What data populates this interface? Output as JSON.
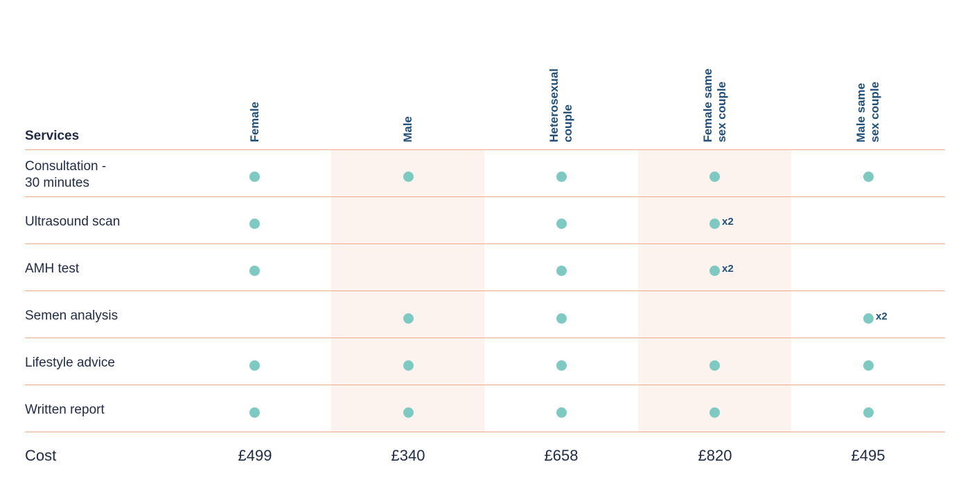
{
  "header": {
    "services_label": "Services",
    "columns": [
      {
        "label": "Female"
      },
      {
        "label": "Male"
      },
      {
        "label": "Heterosexual\ncouple"
      },
      {
        "label": "Female same\nsex couple"
      },
      {
        "label": "Male same\nsex couple"
      }
    ]
  },
  "rows": [
    {
      "label": "Consultation -\n30 minutes",
      "cells": [
        "dot",
        "dot",
        "dot",
        "dot",
        "dot"
      ]
    },
    {
      "label": "Ultrasound scan",
      "cells": [
        "dot",
        "",
        "dot",
        "dot",
        ""
      ],
      "multipliers": [
        "",
        "",
        "",
        "x2",
        ""
      ]
    },
    {
      "label": "AMH test",
      "cells": [
        "dot",
        "",
        "dot",
        "dot",
        ""
      ],
      "multipliers": [
        "",
        "",
        "",
        "x2",
        ""
      ]
    },
    {
      "label": "Semen analysis",
      "cells": [
        "",
        "dot",
        "dot",
        "",
        "dot"
      ],
      "multipliers": [
        "",
        "",
        "",
        "",
        "x2"
      ]
    },
    {
      "label": "Lifestyle advice",
      "cells": [
        "dot",
        "dot",
        "dot",
        "dot",
        "dot"
      ]
    },
    {
      "label": "Written report",
      "cells": [
        "dot",
        "dot",
        "dot",
        "dot",
        "dot"
      ]
    }
  ],
  "cost": {
    "label": "Cost",
    "values": [
      "£499",
      "£340",
      "£658",
      "£820",
      "£495"
    ]
  },
  "colors": {
    "dot": "#7ecac3",
    "rule": "#eea98a",
    "shade": "#fdf3ee",
    "header_text": "#1f4f7a",
    "body_text": "#1f2a44"
  }
}
